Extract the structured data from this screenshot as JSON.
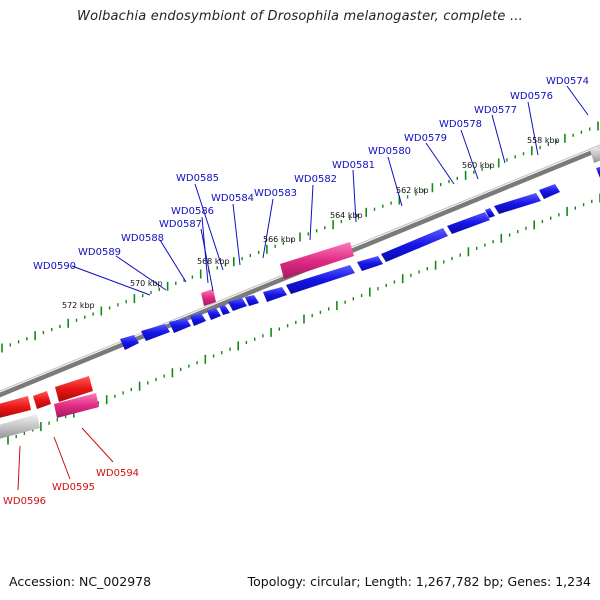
{
  "title": "Wolbachia endosymbiont of Drosophila melanogaster, complete ...",
  "footer": {
    "accession": "Accession: NC_002978",
    "stats": "Topology: circular; Length: 1,267,782 bp; Genes: 1,234"
  },
  "colors": {
    "forward_gene": "#1010e0",
    "reverse_gene": "#e01010",
    "pseudo_gene_pink": "#e0287f",
    "rna_gray": "#bbbbbb",
    "backbone": "#888888",
    "tick_green": "#138a13",
    "forward_label": "#1010c0",
    "reverse_label": "#d01010"
  },
  "scale_labels": [
    "558 kbp",
    "560 kbp",
    "562 kbp",
    "564 kbp",
    "566 kbp",
    "568 kbp",
    "570 kbp",
    "572 kbp"
  ],
  "forward_genes": [
    "WD0574",
    "WD0576",
    "WD0577",
    "WD0578",
    "WD0579",
    "WD0580",
    "WD0581",
    "WD0582",
    "WD0583",
    "WD0584",
    "WD0585",
    "WD0586",
    "WD0587",
    "WD0588",
    "WD0589",
    "WD0590"
  ],
  "reverse_genes": [
    "WD0594",
    "WD0595",
    "WD0596"
  ]
}
